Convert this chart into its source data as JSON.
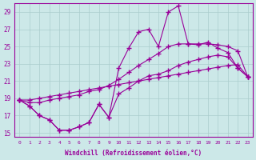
{
  "xlabel": "Windchill (Refroidissement éolien,°C)",
  "bg_color": "#cce8e8",
  "line_color": "#990099",
  "grid_color": "#aacccc",
  "xlim": [
    -0.5,
    23.5
  ],
  "ylim": [
    14.5,
    30.0
  ],
  "yticks": [
    15,
    17,
    19,
    21,
    23,
    25,
    27,
    29
  ],
  "xticks": [
    0,
    1,
    2,
    3,
    4,
    5,
    6,
    7,
    8,
    9,
    10,
    11,
    12,
    13,
    14,
    15,
    16,
    17,
    18,
    19,
    20,
    21,
    22,
    23
  ],
  "line1_x": [
    0,
    1,
    2,
    3,
    4,
    5,
    6,
    7,
    8,
    9,
    10,
    11,
    12,
    13,
    14,
    15,
    16,
    17,
    18,
    19,
    20,
    21,
    22,
    23
  ],
  "line1_y": [
    18.8,
    18.1,
    17.0,
    16.5,
    15.3,
    15.3,
    15.7,
    16.2,
    18.3,
    16.8,
    22.5,
    24.8,
    26.7,
    27.0,
    25.0,
    29.0,
    29.7,
    25.3,
    25.2,
    25.5,
    24.8,
    24.3,
    22.5,
    21.5
  ],
  "line2_x": [
    0,
    1,
    2,
    3,
    4,
    5,
    6,
    7,
    8,
    9,
    10,
    11,
    12,
    13,
    14,
    15,
    16,
    17,
    18,
    19,
    20,
    21,
    22,
    23
  ],
  "line2_y": [
    18.8,
    18.8,
    19.0,
    19.2,
    19.4,
    19.6,
    19.8,
    20.0,
    20.2,
    20.4,
    20.6,
    20.8,
    21.0,
    21.2,
    21.4,
    21.6,
    21.8,
    22.0,
    22.2,
    22.4,
    22.6,
    22.8,
    22.9,
    21.5
  ],
  "line3_x": [
    0,
    1,
    2,
    3,
    4,
    5,
    6,
    7,
    8,
    9,
    10,
    11,
    12,
    13,
    14,
    15,
    16,
    17,
    18,
    19,
    20,
    21,
    22,
    23
  ],
  "line3_y": [
    18.8,
    18.5,
    18.5,
    18.8,
    19.0,
    19.2,
    19.4,
    19.8,
    20.0,
    20.5,
    21.2,
    22.0,
    22.8,
    23.5,
    24.2,
    25.0,
    25.3,
    25.3,
    25.3,
    25.3,
    25.2,
    25.0,
    24.5,
    21.5
  ],
  "line4_x": [
    0,
    1,
    2,
    3,
    4,
    5,
    6,
    7,
    8,
    9,
    10,
    11,
    12,
    13,
    14,
    15,
    16,
    17,
    18,
    19,
    20,
    21,
    22,
    23
  ],
  "line4_y": [
    18.8,
    18.1,
    17.0,
    16.5,
    15.3,
    15.3,
    15.7,
    16.2,
    18.3,
    16.8,
    19.5,
    20.2,
    21.0,
    21.6,
    21.8,
    22.2,
    22.8,
    23.2,
    23.5,
    23.8,
    24.0,
    23.8,
    22.5,
    21.5
  ],
  "marker": "+",
  "marker_size": 4,
  "line_width": 0.8
}
